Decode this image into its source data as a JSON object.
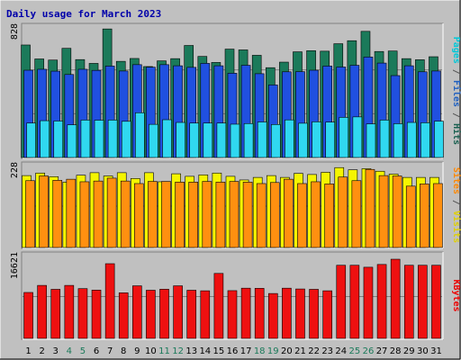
{
  "chart_data": {
    "type": "bar",
    "title": "Daily usage for March 2023",
    "categories": [
      "1",
      "2",
      "3",
      "4",
      "5",
      "6",
      "7",
      "8",
      "9",
      "10",
      "11",
      "12",
      "13",
      "14",
      "15",
      "16",
      "17",
      "18",
      "19",
      "20",
      "21",
      "22",
      "23",
      "24",
      "25",
      "26",
      "27",
      "28",
      "29",
      "30",
      "31"
    ],
    "weekend_days": [
      "4",
      "5",
      "11",
      "12",
      "18",
      "19",
      "25",
      "26"
    ],
    "panels": [
      {
        "ymax": 828,
        "ymax_label": "828",
        "right_label_parts": [
          {
            "text": "Pages",
            "color": "#00c8d8"
          },
          {
            "text": " / ",
            "color": "#555555"
          },
          {
            "text": "Files",
            "color": "#2060c0"
          },
          {
            "text": " / ",
            "color": "#555555"
          },
          {
            "text": "Hits",
            "color": "#1a6050"
          }
        ],
        "series": [
          {
            "name": "Hits",
            "color": "#1b7a5a",
            "values": [
              709,
              621,
              614,
              688,
              617,
              593,
              810,
              606,
              624,
              573,
              609,
              623,
              706,
              637,
              599,
              683,
              678,
              644,
              566,
              601,
              666,
              673,
              670,
              717,
              736,
              795,
              668,
              671,
              623,
              616,
              635
            ]
          },
          {
            "name": "Files",
            "color": "#2050e0",
            "values": [
              550,
              556,
              544,
              523,
              556,
              549,
              576,
              545,
              585,
              569,
              585,
              578,
              568,
              593,
              578,
              531,
              581,
              528,
              457,
              540,
              541,
              550,
              576,
              570,
              581,
              633,
              595,
              516,
              578,
              540,
              545
            ]
          },
          {
            "name": "Pages",
            "color": "#30d8f0",
            "values": [
              217,
              232,
              230,
              206,
              236,
              235,
              236,
              228,
              282,
              209,
              238,
              221,
              217,
              217,
              217,
              210,
              214,
              224,
              208,
              237,
              216,
              225,
              223,
              253,
              256,
              212,
              236,
              213,
              221,
              219,
              229
            ]
          }
        ]
      },
      {
        "ymax": 228,
        "ymax_label": "228",
        "right_label_parts": [
          {
            "text": "Sites",
            "color": "#ff8800"
          },
          {
            "text": " / ",
            "color": "#555555"
          },
          {
            "text": "Visits",
            "color": "#e0d000"
          }
        ],
        "series": [
          {
            "name": "Visits",
            "color": "#f5f500",
            "values": [
              198,
              205,
              195,
              180,
              199,
              206,
              197,
              206,
              190,
              206,
              181,
              203,
              196,
              200,
              205,
              196,
              186,
              193,
              198,
              193,
              204,
              201,
              207,
              220,
              214,
              217,
              210,
              202,
              193,
              193,
              193
            ]
          },
          {
            "name": "Sites",
            "color": "#ff9010",
            "values": [
              184,
              197,
              185,
              188,
              181,
              183,
              191,
              183,
              176,
              182,
              182,
              180,
              180,
              182,
              180,
              182,
              180,
              176,
              179,
              188,
              176,
              181,
              175,
              194,
              184,
              215,
              198,
              197,
              169,
              175,
              176
            ]
          }
        ]
      },
      {
        "ymax": 16621,
        "ymax_label": "16621",
        "right_label_parts": [
          {
            "text": "KBytes",
            "color": "#ee0000"
          }
        ],
        "series": [
          {
            "name": "KBytes",
            "color": "#ee1010",
            "values": [
              9120,
              10525,
              9745,
              10525,
              9885,
              9595,
              14835,
              9055,
              10445,
              9565,
              9765,
              10445,
              9565,
              9455,
              12905,
              9485,
              9975,
              9945,
              8915,
              9975,
              9815,
              9745,
              9455,
              14525,
              14525,
              14135,
              14685,
              15725,
              14525,
              14525,
              14525
            ]
          }
        ]
      }
    ]
  }
}
